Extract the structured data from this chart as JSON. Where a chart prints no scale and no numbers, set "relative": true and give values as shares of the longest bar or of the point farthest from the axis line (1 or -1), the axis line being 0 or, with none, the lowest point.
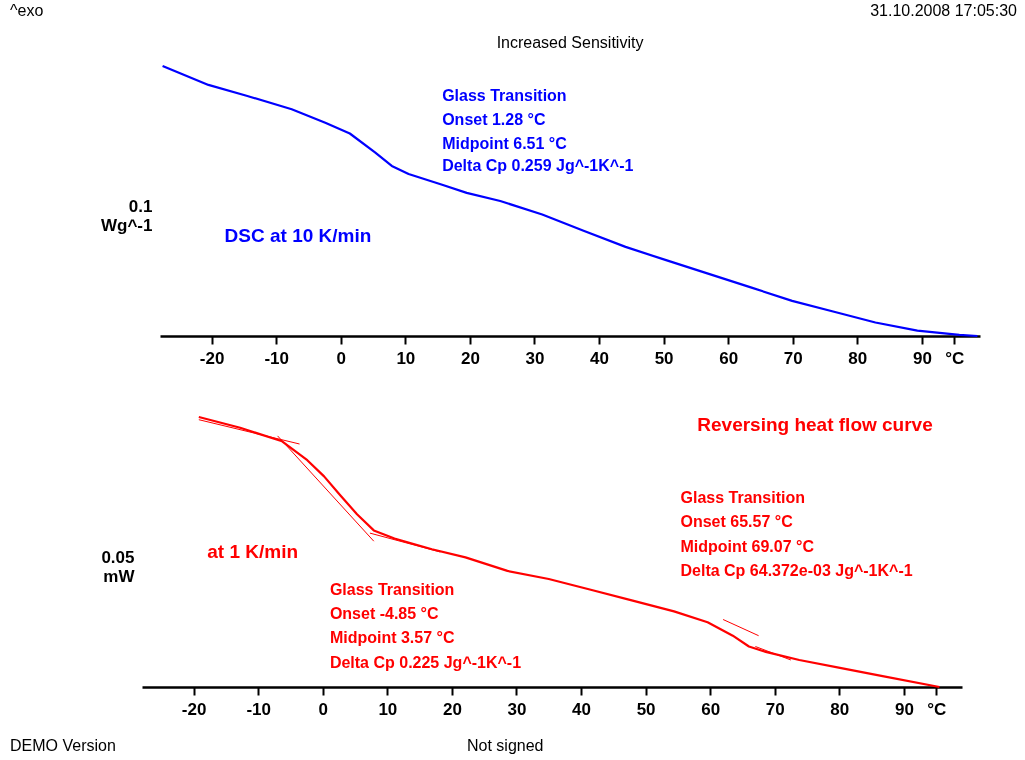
{
  "chart_data": [
    {
      "type": "line",
      "title": "Increased Sensitivity",
      "ylabel": "0.1 Wg^-1",
      "relative": true,
      "xlim": [
        -28,
        99
      ],
      "xticks": [
        -20,
        -10,
        0,
        10,
        20,
        30,
        40,
        50,
        60,
        70,
        80,
        90,
        {
          "value": 95,
          "label": "°C"
        }
      ],
      "annotations": [
        "^exo",
        "31.10.2008 17:05:30",
        "DSC at 10 K/min",
        "Glass Transition",
        "Onset 1.28 °C",
        "Midpoint 6.51 °C",
        "Delta Cp 0.259 Jg^-1K^-1"
      ],
      "series": [
        {
          "color": "#0000ff",
          "x": [
            -27.6,
            -20.5,
            -14.6,
            -7.6,
            -2.4,
            1.4,
            5.3,
            7.9,
            10.5,
            15.7,
            19.5,
            24.7,
            31.2,
            37.6,
            44.1,
            50.5,
            57.0,
            63.5,
            69.9,
            76.4,
            82.8,
            89.3,
            95.8,
            98.6
          ],
          "values": [
            1,
            0.93,
            0.89,
            0.84,
            0.79,
            0.75,
            0.68,
            0.63,
            0.6,
            0.56,
            0.53,
            0.5,
            0.45,
            0.39,
            0.33,
            0.28,
            0.23,
            0.18,
            0.13,
            0.09,
            0.05,
            0.02,
            0.004,
            0
          ]
        }
      ]
    },
    {
      "type": "line",
      "ylabel": "0.05 mW",
      "relative": true,
      "xlim": [
        -28,
        99
      ],
      "xticks": [
        -20,
        -10,
        0,
        10,
        20,
        30,
        40,
        50,
        60,
        70,
        80,
        90,
        {
          "value": 95,
          "label": "°C"
        }
      ],
      "annotations": [
        "Reversing heat flow curve",
        "at 1 K/min",
        "Glass Transition",
        "Onset -4.85 °C",
        "Midpoint 3.57 °C",
        "Delta Cp 0.225 Jg^-1K^-1",
        "Glass Transition",
        "Onset 65.57 °C",
        "Midpoint 69.07 °C",
        "Delta Cp 64.372e-03 Jg^-1K^-1",
        "DEMO Version",
        "Not signed"
      ],
      "series": [
        {
          "color": "#ff0000",
          "x": [
            -19.2,
            -12.8,
            -6.3,
            -2.4,
            0.2,
            2.7,
            5.3,
            7.9,
            11.1,
            16.9,
            22.1,
            28.6,
            35.0,
            41.5,
            48.0,
            54.4,
            59.6,
            63.5,
            66.0,
            68.6,
            73.8,
            80.3,
            86.7,
            95.5
          ],
          "values": [
            1,
            0.96,
            0.91,
            0.84,
            0.78,
            0.71,
            0.64,
            0.58,
            0.55,
            0.51,
            0.48,
            0.43,
            0.4,
            0.36,
            0.32,
            0.28,
            0.24,
            0.19,
            0.15,
            0.13,
            0.1,
            0.07,
            0.04,
            0
          ]
        },
        {
          "color": "#ff0000",
          "x": [
            -19.2,
            -3.6
          ],
          "values": [
            0.99,
            0.9
          ]
        },
        {
          "color": "#ff0000",
          "x": [
            -7,
            7.9
          ],
          "values": [
            0.93,
            0.54
          ]
        },
        {
          "color": "#ff0000",
          "x": [
            7.3,
            18.2
          ],
          "values": [
            0.57,
            0.5
          ]
        },
        {
          "color": "#ff0000",
          "x": [
            62,
            67.5
          ],
          "values": [
            0.25,
            0.19
          ]
        },
        {
          "color": "#ff0000",
          "x": [
            67,
            72.5
          ],
          "values": [
            0.15,
            0.1
          ]
        }
      ]
    }
  ]
}
